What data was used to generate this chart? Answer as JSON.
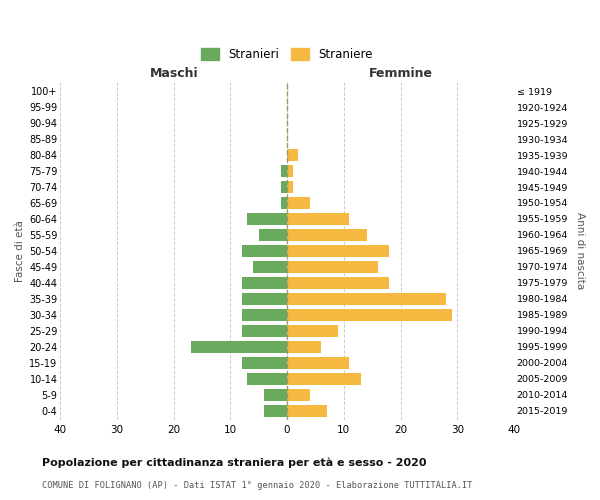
{
  "age_groups": [
    "0-4",
    "5-9",
    "10-14",
    "15-19",
    "20-24",
    "25-29",
    "30-34",
    "35-39",
    "40-44",
    "45-49",
    "50-54",
    "55-59",
    "60-64",
    "65-69",
    "70-74",
    "75-79",
    "80-84",
    "85-89",
    "90-94",
    "95-99",
    "100+"
  ],
  "birth_years": [
    "2015-2019",
    "2010-2014",
    "2005-2009",
    "2000-2004",
    "1995-1999",
    "1990-1994",
    "1985-1989",
    "1980-1984",
    "1975-1979",
    "1970-1974",
    "1965-1969",
    "1960-1964",
    "1955-1959",
    "1950-1954",
    "1945-1949",
    "1940-1944",
    "1935-1939",
    "1930-1934",
    "1925-1929",
    "1920-1924",
    "≤ 1919"
  ],
  "males": [
    4,
    4,
    7,
    8,
    17,
    8,
    8,
    8,
    8,
    6,
    8,
    5,
    7,
    1,
    1,
    1,
    0,
    0,
    0,
    0,
    0
  ],
  "females": [
    7,
    4,
    13,
    11,
    6,
    9,
    29,
    28,
    18,
    16,
    18,
    14,
    11,
    4,
    1,
    1,
    2,
    0,
    0,
    0,
    0
  ],
  "male_color": "#6aaa5e",
  "female_color": "#f5b942",
  "background_color": "#ffffff",
  "grid_color": "#cccccc",
  "title": "Popolazione per cittadinanza straniera per età e sesso - 2020",
  "subtitle": "COMUNE DI FOLIGNANO (AP) - Dati ISTAT 1° gennaio 2020 - Elaborazione TUTTITALIA.IT",
  "ylabel_left": "Fasce di età",
  "ylabel_right": "Anni di nascita",
  "xlabel_left": "Maschi",
  "xlabel_right": "Femmine",
  "legend_male": "Stranieri",
  "legend_female": "Straniere",
  "xlim": 40,
  "bar_height": 0.75
}
